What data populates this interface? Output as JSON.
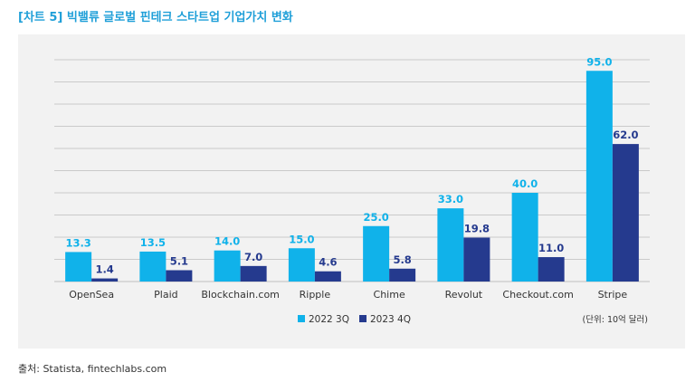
{
  "title": "[차트 5] 빅밸류 글로벌 핀테크 스타트업 기업가치 변화",
  "source": "출처: Statista, fintechlabs.com",
  "colors": {
    "series1": "#10b2ea",
    "series2": "#253a8e",
    "title": "#1f9fd8",
    "grid": "#bdbdbd"
  },
  "chart_data": {
    "type": "bar",
    "categories": [
      "OpenSea",
      "Plaid",
      "Blockchain.com",
      "Ripple",
      "Chime",
      "Revolut",
      "Checkout.com",
      "Stripe"
    ],
    "series": [
      {
        "name": "2022 3Q",
        "values": [
          13.3,
          13.5,
          14.0,
          15.0,
          25.0,
          33.0,
          40.0,
          95.0
        ],
        "labels": [
          "13.3",
          "13.5",
          "14.0",
          "15.0",
          "25.0",
          "33.0",
          "40.0",
          "95.0"
        ]
      },
      {
        "name": "2023 4Q",
        "values": [
          1.4,
          5.1,
          7.0,
          4.6,
          5.8,
          19.8,
          11.0,
          62.0
        ],
        "labels": [
          "1.4",
          "5.1",
          "7.0",
          "4.6",
          "5.8",
          "19.8",
          "11.0",
          "62.0"
        ]
      }
    ],
    "ylim": [
      0,
      100
    ],
    "unit_note": "(단위: 10억 달러)",
    "grid": true,
    "legend": "bottom-center"
  }
}
